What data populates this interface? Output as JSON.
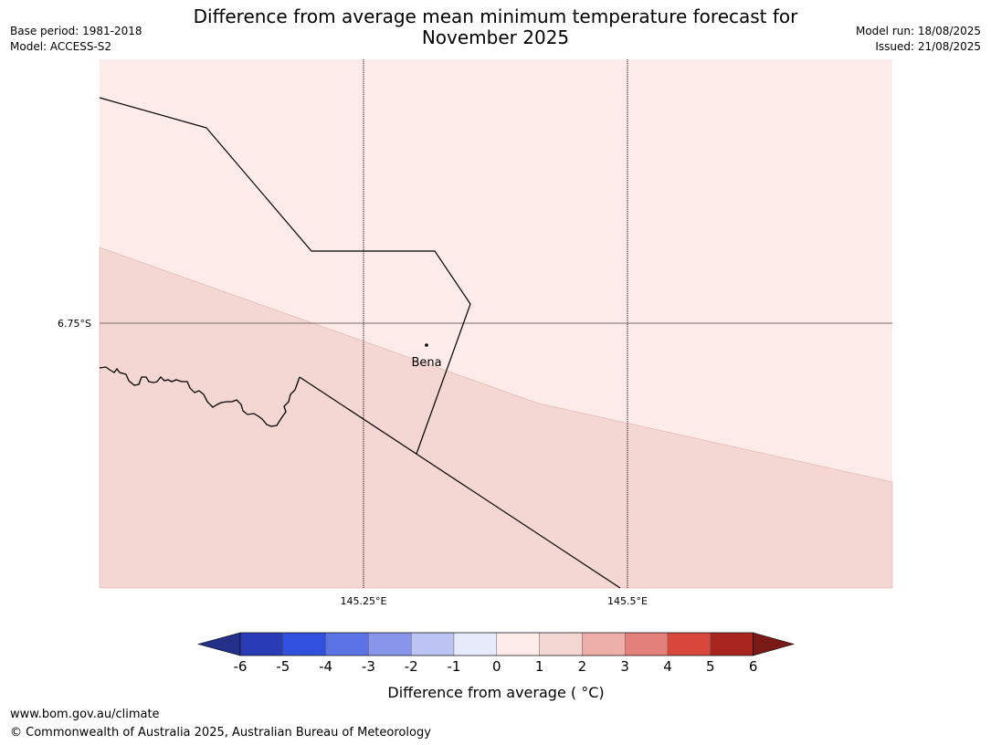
{
  "header": {
    "title_line1": "Difference from average mean minimum temperature forecast for",
    "title_line2": "November 2025",
    "base_period": "Base period: 1981-2018",
    "model": "Model: ACCESS-S2",
    "model_run": "Model run: 18/08/2025",
    "issued": "Issued: 21/08/2025"
  },
  "map": {
    "lat_label": "6.75°S",
    "lon_labels": [
      "145.25°E",
      "145.5°E"
    ],
    "place_name": "Bena",
    "fill_colors": {
      "anomaly_0_to_1": "#fcebe9",
      "anomaly_1_to_2": "#f4d6d3"
    }
  },
  "legend": {
    "title": "Difference from average ( °C)",
    "ticks": [
      "-6",
      "-5",
      "-4",
      "-3",
      "-2",
      "-1",
      "0",
      "1",
      "2",
      "3",
      "4",
      "5",
      "6"
    ],
    "colors": [
      "#22308a",
      "#2a3cb5",
      "#3050dd",
      "#5c73e6",
      "#8796eb",
      "#bcc4f4",
      "#e7eafb",
      "#fcebe9",
      "#f4d6d3",
      "#edafa8",
      "#e4807a",
      "#d9473c",
      "#a8251e",
      "#7a1a17"
    ]
  },
  "footer": {
    "url": "www.bom.gov.au/climate",
    "copyright": "© Commonwealth of Australia 2025, Australian Bureau of Meteorology"
  }
}
